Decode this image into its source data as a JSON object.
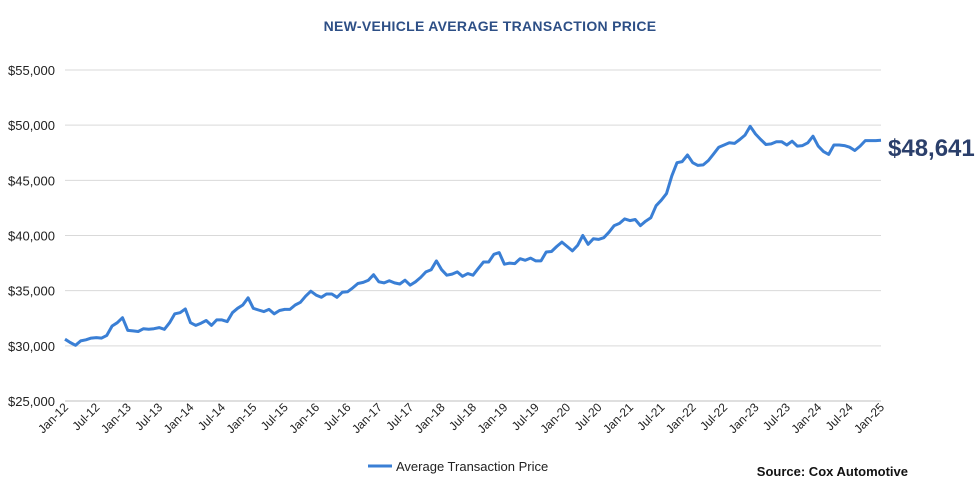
{
  "chart_data": {
    "type": "line",
    "title": "NEW-VEHICLE AVERAGE TRANSACTION PRICE",
    "xlabel": "",
    "ylabel": "",
    "ylim": [
      25000,
      55000
    ],
    "yticks": [
      "$25,000",
      "$30,000",
      "$35,000",
      "$40,000",
      "$45,000",
      "$50,000",
      "$55,000"
    ],
    "ytick_values": [
      25000,
      30000,
      35000,
      40000,
      45000,
      50000,
      55000
    ],
    "xticks": [
      "Jan-12",
      "Jul-12",
      "Jan-13",
      "Jul-13",
      "Jan-14",
      "Jul-14",
      "Jan-15",
      "Jul-15",
      "Jan-16",
      "Jul-16",
      "Jan-17",
      "Jul-17",
      "Jan-18",
      "Jul-18",
      "Jan-19",
      "Jul-19",
      "Jan-20",
      "Jul-20",
      "Jan-21",
      "Jul-21",
      "Jan-22",
      "Jul-22",
      "Jan-23",
      "Jul-23",
      "Jan-24",
      "Jul-24",
      "Jan-25"
    ],
    "x_start": "Jan-12",
    "x_end": "Jan-25",
    "x_frequency": "monthly",
    "grid": "horizontal",
    "legend_position": "bottom",
    "end_label": "$48,641",
    "source": "Source: Cox Automotive",
    "series": [
      {
        "name": "Average Transaction Price",
        "color": "#3a7fd5",
        "values": [
          30600,
          30300,
          30050,
          30450,
          30550,
          30700,
          30750,
          30700,
          30950,
          31800,
          32100,
          32550,
          31400,
          31350,
          31300,
          31550,
          31500,
          31550,
          31650,
          31500,
          32100,
          32900,
          33000,
          33350,
          32100,
          31850,
          32050,
          32300,
          31850,
          32350,
          32350,
          32200,
          33000,
          33400,
          33700,
          34350,
          33400,
          33250,
          33100,
          33300,
          32900,
          33200,
          33300,
          33300,
          33700,
          33950,
          34500,
          34950,
          34600,
          34400,
          34700,
          34700,
          34400,
          34850,
          34900,
          35250,
          35650,
          35750,
          35950,
          36450,
          35800,
          35700,
          35900,
          35700,
          35600,
          35950,
          35500,
          35800,
          36200,
          36700,
          36900,
          37700,
          36900,
          36400,
          36500,
          36700,
          36300,
          36550,
          36400,
          37000,
          37600,
          37600,
          38300,
          38450,
          37400,
          37500,
          37450,
          37900,
          37750,
          37950,
          37700,
          37700,
          38500,
          38550,
          39000,
          39400,
          39000,
          38600,
          39100,
          40000,
          39200,
          39700,
          39650,
          39800,
          40300,
          40900,
          41100,
          41500,
          41350,
          41450,
          40900,
          41300,
          41600,
          42700,
          43200,
          43800,
          45400,
          46600,
          46700,
          47300,
          46600,
          46350,
          46400,
          46800,
          47400,
          48000,
          48200,
          48400,
          48350,
          48700,
          49100,
          49900,
          49200,
          48700,
          48250,
          48300,
          48500,
          48500,
          48200,
          48550,
          48100,
          48150,
          48400,
          49000,
          48100,
          47600,
          47350,
          48200,
          48200,
          48150,
          48000,
          47700,
          48100,
          48600,
          48600,
          48600,
          48641
        ]
      }
    ]
  }
}
